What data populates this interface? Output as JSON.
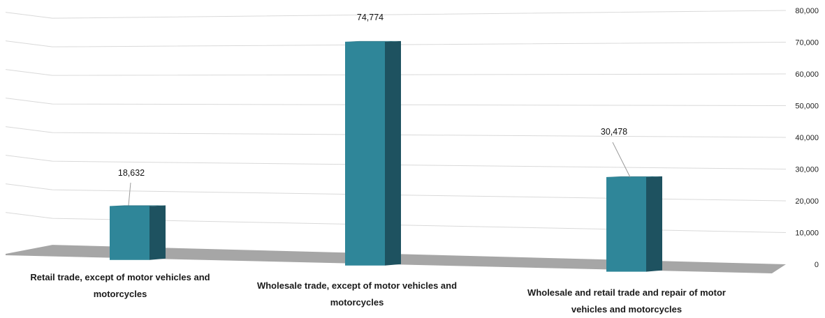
{
  "chart_data": {
    "type": "bar",
    "categories": [
      "Retail trade, except of motor vehicles and motorcycles",
      "Wholesale trade, except of motor vehicles and motorcycles",
      "Wholesale and retail trade and repair of motor vehicles and motorcycles"
    ],
    "values": [
      18632,
      74774,
      30478
    ],
    "data_labels": [
      "18,632",
      "74,774",
      "30,478"
    ],
    "y_ticks": [
      "0",
      "10,000",
      "20,000",
      "30,000",
      "40,000",
      "50,000",
      "60,000",
      "70,000",
      "80,000"
    ],
    "ylim": [
      0,
      80000
    ],
    "y_axis_position": "right",
    "grid": true,
    "legend": "none",
    "style": "3d-column",
    "colors": {
      "bar_front": "#2f8699",
      "bar_side": "#1e5260",
      "bar_top": "#2a7586",
      "floor": "#a6a6a6",
      "grid": "#d9d9d9"
    }
  }
}
